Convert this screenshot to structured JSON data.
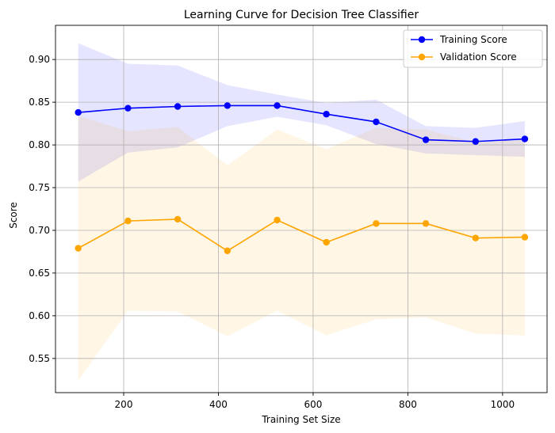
{
  "chart_data": {
    "type": "line",
    "title": "Learning Curve for Decision Tree Classifier",
    "xlabel": "Training Set Size",
    "ylabel": "Score",
    "xlim": [
      56,
      1094
    ],
    "ylim": [
      0.51,
      0.94
    ],
    "xticks": [
      200,
      400,
      600,
      800,
      1000
    ],
    "yticks": [
      0.55,
      0.6,
      0.65,
      0.7,
      0.75,
      0.8,
      0.85,
      0.9
    ],
    "ytick_labels": [
      "0.55",
      "0.60",
      "0.65",
      "0.70",
      "0.75",
      "0.80",
      "0.85",
      "0.90"
    ],
    "grid": true,
    "legend_position": "top-right",
    "x": [
      104,
      209,
      314,
      419,
      524,
      628,
      733,
      838,
      943,
      1047
    ],
    "series": [
      {
        "name": "Training Score",
        "color": "#0000ff",
        "band_color": "#0000ff",
        "values": [
          0.838,
          0.843,
          0.845,
          0.846,
          0.846,
          0.836,
          0.827,
          0.806,
          0.804,
          0.807
        ],
        "upper": [
          0.919,
          0.895,
          0.893,
          0.87,
          0.859,
          0.849,
          0.853,
          0.822,
          0.82,
          0.828
        ],
        "lower": [
          0.757,
          0.791,
          0.797,
          0.822,
          0.833,
          0.823,
          0.801,
          0.79,
          0.788,
          0.786
        ]
      },
      {
        "name": "Validation Score",
        "color": "#ffa500",
        "band_color": "#ffa500",
        "values": [
          0.679,
          0.711,
          0.713,
          0.676,
          0.712,
          0.686,
          0.708,
          0.708,
          0.691,
          0.692
        ],
        "upper": [
          0.834,
          0.816,
          0.821,
          0.776,
          0.818,
          0.795,
          0.82,
          0.818,
          0.803,
          0.806
        ],
        "lower": [
          0.524,
          0.606,
          0.605,
          0.576,
          0.606,
          0.577,
          0.596,
          0.598,
          0.579,
          0.577
        ]
      }
    ]
  }
}
